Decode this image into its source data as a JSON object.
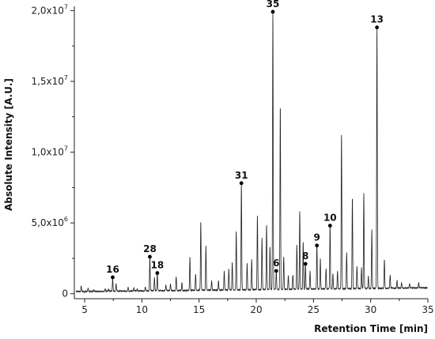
{
  "chart_data": {
    "type": "line",
    "title": "",
    "xlabel": "Retention Time [min]",
    "ylabel": "Absolute Intensity [A.U.]",
    "xlim": [
      4.1,
      35
    ],
    "ylim": [
      -350000,
      20300000
    ],
    "x_ticks": [
      {
        "value": 5,
        "label": "5"
      },
      {
        "value": 10,
        "label": "10"
      },
      {
        "value": 15,
        "label": "15"
      },
      {
        "value": 20,
        "label": "20"
      },
      {
        "value": 25,
        "label": "25"
      },
      {
        "value": 30,
        "label": "30"
      },
      {
        "value": 35,
        "label": "35"
      }
    ],
    "y_ticks": [
      {
        "value": 0,
        "label": "0"
      },
      {
        "value": 5000000,
        "label": "5,0x10",
        "exp": "6"
      },
      {
        "value": 10000000,
        "label": "1,0x10",
        "exp": "7"
      },
      {
        "value": 15000000,
        "label": "1,5x10",
        "exp": "7"
      },
      {
        "value": 20000000,
        "label": "2,0x10",
        "exp": "7"
      }
    ],
    "series": [
      {
        "color": "#222222",
        "baseline": 150000,
        "baseline_end": 420000,
        "peaks": [
          [
            4.7,
            550000
          ],
          [
            5.3,
            380000
          ],
          [
            5.8,
            250000
          ],
          [
            6.8,
            320000
          ],
          [
            7.1,
            300000
          ],
          [
            7.45,
            1050000
          ],
          [
            7.75,
            650000
          ],
          [
            8.8,
            450000
          ],
          [
            9.3,
            350000
          ],
          [
            9.6,
            300000
          ],
          [
            10.3,
            450000
          ],
          [
            10.7,
            2500000
          ],
          [
            11.1,
            1100000
          ],
          [
            11.35,
            1350000
          ],
          [
            12.1,
            550000
          ],
          [
            12.5,
            600000
          ],
          [
            13.0,
            1150000
          ],
          [
            13.5,
            700000
          ],
          [
            14.2,
            2500000
          ],
          [
            14.7,
            1300000
          ],
          [
            15.15,
            5000000
          ],
          [
            15.6,
            3300000
          ],
          [
            16.1,
            800000
          ],
          [
            16.7,
            800000
          ],
          [
            17.2,
            1500000
          ],
          [
            17.6,
            1600000
          ],
          [
            17.9,
            2100000
          ],
          [
            18.25,
            4300000
          ],
          [
            18.7,
            7700000
          ],
          [
            19.2,
            2000000
          ],
          [
            19.6,
            2300000
          ],
          [
            20.1,
            5400000
          ],
          [
            20.5,
            3800000
          ],
          [
            20.9,
            4800000
          ],
          [
            21.2,
            3200000
          ],
          [
            21.45,
            19800000
          ],
          [
            21.75,
            1500000
          ],
          [
            22.1,
            13200000
          ],
          [
            22.4,
            2500000
          ],
          [
            22.8,
            1100000
          ],
          [
            23.2,
            1200000
          ],
          [
            23.55,
            3300000
          ],
          [
            23.8,
            5700000
          ],
          [
            24.1,
            3500000
          ],
          [
            24.3,
            2000000
          ],
          [
            24.7,
            1400000
          ],
          [
            25.3,
            3300000
          ],
          [
            25.6,
            2300000
          ],
          [
            26.1,
            1600000
          ],
          [
            26.45,
            4700000
          ],
          [
            26.7,
            1200000
          ],
          [
            27.1,
            1400000
          ],
          [
            27.45,
            11100000
          ],
          [
            27.9,
            2700000
          ],
          [
            28.4,
            6600000
          ],
          [
            28.8,
            1700000
          ],
          [
            29.2,
            1600000
          ],
          [
            29.4,
            6900000
          ],
          [
            29.8,
            1000000
          ],
          [
            30.1,
            4300000
          ],
          [
            30.55,
            18700000
          ],
          [
            31.2,
            2200000
          ],
          [
            31.7,
            1100000
          ],
          [
            32.3,
            700000
          ],
          [
            32.7,
            500000
          ],
          [
            33.4,
            450000
          ],
          [
            34.2,
            550000
          ]
        ]
      }
    ],
    "annotations": [
      {
        "label": "16",
        "x": 7.45,
        "y": 1050000
      },
      {
        "label": "28",
        "x": 10.7,
        "y": 2500000
      },
      {
        "label": "18",
        "x": 11.35,
        "y": 1350000
      },
      {
        "label": "31",
        "x": 18.7,
        "y": 7700000
      },
      {
        "label": "35",
        "x": 21.45,
        "y": 19800000
      },
      {
        "label": "6",
        "x": 21.75,
        "y": 1500000
      },
      {
        "label": "8",
        "x": 24.3,
        "y": 2000000
      },
      {
        "label": "9",
        "x": 25.3,
        "y": 3300000
      },
      {
        "label": "10",
        "x": 26.45,
        "y": 4700000
      },
      {
        "label": "13",
        "x": 30.55,
        "y": 18700000
      }
    ]
  }
}
